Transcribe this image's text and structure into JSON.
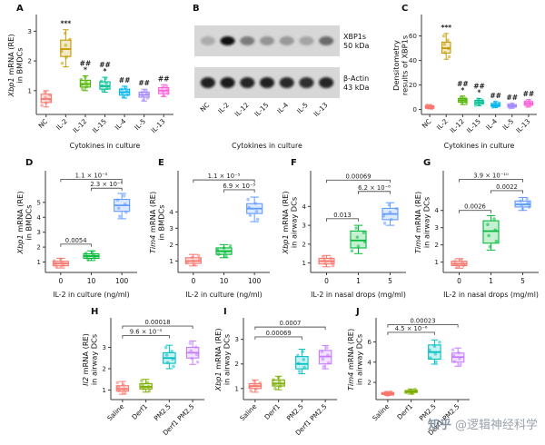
{
  "figure": {
    "background": "#ffffff",
    "watermark": {
      "brand": "知乎",
      "handle": "@逻辑神经科学"
    }
  },
  "chart_data": [
    {
      "id": "A",
      "type": "box",
      "letter": "A",
      "ylabel": {
        "italic": "Xbp1",
        "rest": " mRNA (RE)",
        "line2": "in BMDCs"
      },
      "xlabel": "Cytokines in culture",
      "categories": [
        "NC",
        "IL-2",
        "IL-12",
        "IL-15",
        "IL-4",
        "IL-5",
        "IL-13"
      ],
      "colors": [
        "#F8766D",
        "#C49A00",
        "#53B400",
        "#00C094",
        "#00B6EB",
        "#A58AFF",
        "#FB61D7"
      ],
      "ylim": [
        0.2,
        3.5
      ],
      "yticks": [
        1,
        2,
        3
      ],
      "boxes": [
        {
          "lo": 0.45,
          "q1": 0.6,
          "med": 0.72,
          "q3": 0.88,
          "hi": 1.0
        },
        {
          "lo": 1.8,
          "q1": 2.15,
          "med": 2.4,
          "q3": 2.7,
          "hi": 3.05
        },
        {
          "lo": 1.0,
          "q1": 1.12,
          "med": 1.22,
          "q3": 1.35,
          "hi": 1.5
        },
        {
          "lo": 0.95,
          "q1": 1.05,
          "med": 1.15,
          "q3": 1.3,
          "hi": 1.45
        },
        {
          "lo": 0.75,
          "q1": 0.85,
          "med": 0.95,
          "q3": 1.05,
          "hi": 1.15
        },
        {
          "lo": 0.65,
          "q1": 0.78,
          "med": 0.86,
          "q3": 0.95,
          "hi": 1.05
        },
        {
          "lo": 0.8,
          "q1": 0.9,
          "med": 1.0,
          "q3": 1.1,
          "hi": 1.2
        }
      ],
      "sig": [
        [],
        [
          "***"
        ],
        [
          "##",
          "*"
        ],
        [
          "##",
          "*"
        ],
        [
          "##"
        ],
        [
          "##"
        ],
        [
          "##"
        ]
      ],
      "brackets": []
    },
    {
      "id": "B",
      "type": "blot",
      "letter": "B",
      "lanes": [
        "NC",
        "IL-2",
        "IL-12",
        "IL-15",
        "IL-4",
        "IL-5",
        "IL-13"
      ],
      "xlabel": "Cytokines in culture",
      "rows": [
        {
          "label": "XBP1s",
          "size": "50 kDa",
          "intensities": [
            0.18,
            1.0,
            0.42,
            0.3,
            0.28,
            0.22,
            0.5
          ]
        },
        {
          "label": "β-Actin",
          "size": "43 kDa",
          "intensities": [
            0.92,
            0.95,
            0.9,
            0.92,
            0.88,
            0.85,
            0.9
          ]
        }
      ]
    },
    {
      "id": "C",
      "type": "box",
      "letter": "C",
      "ylabel": {
        "italic": "",
        "rest": "Densitometry",
        "line2": "results of XBP1s"
      },
      "xlabel": "Cytokines in culture",
      "categories": [
        "NC",
        "IL-2",
        "IL-12",
        "IL-15",
        "IL-4",
        "IL-5",
        "IL-13"
      ],
      "colors": [
        "#F8766D",
        "#C49A00",
        "#53B400",
        "#00C094",
        "#00B6EB",
        "#A58AFF",
        "#FB61D7"
      ],
      "ylim": [
        -4,
        76
      ],
      "yticks": [
        0,
        20,
        40,
        60
      ],
      "boxes": [
        {
          "lo": 0.5,
          "q1": 1,
          "med": 2,
          "q3": 3,
          "hi": 4
        },
        {
          "lo": 41,
          "q1": 46,
          "med": 50,
          "q3": 55,
          "hi": 62
        },
        {
          "lo": 4,
          "q1": 6,
          "med": 7.5,
          "q3": 9,
          "hi": 11
        },
        {
          "lo": 3,
          "q1": 4.5,
          "med": 6,
          "q3": 7.5,
          "hi": 9
        },
        {
          "lo": 1.5,
          "q1": 2.5,
          "med": 3.5,
          "q3": 5,
          "hi": 6.5
        },
        {
          "lo": 1,
          "q1": 2,
          "med": 3,
          "q3": 4,
          "hi": 5
        },
        {
          "lo": 2,
          "q1": 3.5,
          "med": 5,
          "q3": 6.5,
          "hi": 8
        }
      ],
      "sig": [
        [],
        [
          "***"
        ],
        [
          "##",
          "*"
        ],
        [
          "##",
          "*"
        ],
        [
          "##"
        ],
        [
          "##"
        ],
        [
          "##"
        ]
      ],
      "brackets": []
    },
    {
      "id": "D",
      "type": "box",
      "letter": "D",
      "ylabel": {
        "italic": "Xbp1",
        "rest": " mRNA (RE)",
        "line2": "in BMDCs"
      },
      "xlabel": "IL-2 in culture (ng/ml)",
      "categories": [
        "0",
        "10",
        "100"
      ],
      "colors": [
        "#F8766D",
        "#00BA38",
        "#619CFF"
      ],
      "ylim": [
        0.3,
        7.0
      ],
      "yticks": [
        1,
        2,
        3,
        4,
        5
      ],
      "boxes": [
        {
          "lo": 0.6,
          "q1": 0.75,
          "med": 0.9,
          "q3": 1.05,
          "hi": 1.25
        },
        {
          "lo": 1.1,
          "q1": 1.25,
          "med": 1.4,
          "q3": 1.55,
          "hi": 1.75
        },
        {
          "lo": 3.9,
          "q1": 4.4,
          "med": 4.8,
          "q3": 5.2,
          "hi": 5.6
        }
      ],
      "sig": [
        [],
        [],
        []
      ],
      "brackets": [
        {
          "from": 0,
          "to": 2,
          "y": 6.55,
          "label": "1.1 × 10⁻⁵"
        },
        {
          "from": 1,
          "to": 2,
          "y": 5.95,
          "label": "2.3 × 10⁻⁶"
        },
        {
          "from": 0,
          "to": 1,
          "y": 2.2,
          "label": "0.0054"
        }
      ]
    },
    {
      "id": "E",
      "type": "box",
      "letter": "E",
      "ylabel": {
        "italic": "Tim4",
        "rest": " mRNA (RE)",
        "line2": "in BMDCs"
      },
      "xlabel": "IL-2 in culture (ng/ml)",
      "categories": [
        "0",
        "10",
        "100"
      ],
      "colors": [
        "#F8766D",
        "#00BA38",
        "#619CFF"
      ],
      "ylim": [
        0.3,
        6.4
      ],
      "yticks": [
        1,
        2,
        3,
        4
      ],
      "boxes": [
        {
          "lo": 0.7,
          "q1": 0.85,
          "med": 1.0,
          "q3": 1.2,
          "hi": 1.4
        },
        {
          "lo": 1.2,
          "q1": 1.4,
          "med": 1.6,
          "q3": 1.8,
          "hi": 2.0
        },
        {
          "lo": 3.4,
          "q1": 3.9,
          "med": 4.2,
          "q3": 4.5,
          "hi": 4.9
        }
      ],
      "sig": [
        [],
        [],
        []
      ],
      "brackets": [
        {
          "from": 0,
          "to": 2,
          "y": 5.95,
          "label": "1.1 × 10⁻⁵"
        },
        {
          "from": 1,
          "to": 2,
          "y": 5.35,
          "label": "6.9 × 10⁻⁵"
        }
      ]
    },
    {
      "id": "F",
      "type": "box",
      "letter": "F",
      "ylabel": {
        "italic": "Xbp1",
        "rest": " mRNA (RE)",
        "line2": "in airway DCs"
      },
      "xlabel": "IL-2 in nasal drops (mg/ml)",
      "categories": [
        "0",
        "1",
        "5"
      ],
      "colors": [
        "#F8766D",
        "#00BA38",
        "#619CFF"
      ],
      "ylim": [
        0.5,
        5.8
      ],
      "yticks": [
        1,
        2,
        3,
        4
      ],
      "boxes": [
        {
          "lo": 0.8,
          "q1": 0.95,
          "med": 1.1,
          "q3": 1.25,
          "hi": 1.4
        },
        {
          "lo": 1.5,
          "q1": 1.8,
          "med": 2.2,
          "q3": 2.7,
          "hi": 3.0
        },
        {
          "lo": 3.0,
          "q1": 3.3,
          "med": 3.6,
          "q3": 3.9,
          "hi": 4.2
        }
      ],
      "sig": [
        [],
        [],
        []
      ],
      "brackets": [
        {
          "from": 0,
          "to": 2,
          "y": 5.4,
          "label": "0.00069"
        },
        {
          "from": 1,
          "to": 2,
          "y": 4.8,
          "label": "6.2 × 10⁻⁶"
        },
        {
          "from": 0,
          "to": 1,
          "y": 3.35,
          "label": "0.013"
        }
      ]
    },
    {
      "id": "G",
      "type": "box",
      "letter": "G",
      "ylabel": {
        "italic": "Tim4",
        "rest": " mRNA (RE)",
        "line2": "in airway DCs"
      },
      "xlabel": "IL-2 in nasal drops (mg/ml)",
      "categories": [
        "0",
        "1",
        "5"
      ],
      "colors": [
        "#F8766D",
        "#00BA38",
        "#619CFF"
      ],
      "ylim": [
        0.4,
        6.2
      ],
      "yticks": [
        1,
        2,
        3,
        4
      ],
      "boxes": [
        {
          "lo": 0.65,
          "q1": 0.8,
          "med": 0.9,
          "q3": 1.05,
          "hi": 1.2
        },
        {
          "lo": 1.7,
          "q1": 2.1,
          "med": 2.8,
          "q3": 3.4,
          "hi": 3.7
        },
        {
          "lo": 4.0,
          "q1": 4.2,
          "med": 4.35,
          "q3": 4.55,
          "hi": 4.75
        }
      ],
      "sig": [
        [],
        [],
        []
      ],
      "brackets": [
        {
          "from": 0,
          "to": 2,
          "y": 5.8,
          "label": "3.9 × 10⁻¹⁰"
        },
        {
          "from": 1,
          "to": 2,
          "y": 5.15,
          "label": "0.0022"
        },
        {
          "from": 0,
          "to": 1,
          "y": 4.0,
          "label": "0.0026"
        }
      ]
    },
    {
      "id": "H",
      "type": "box",
      "letter": "H",
      "ylabel": {
        "italic": "Il2",
        "rest": " mRNA (RE)",
        "line2": "in airway DCs"
      },
      "xlabel": "",
      "categories": [
        "Saline",
        "Derf1",
        "PM2.5",
        "Derf1 PM2.5"
      ],
      "colors": [
        "#F8766D",
        "#7CAE00",
        "#00BFC4",
        "#C77CFF"
      ],
      "ylim": [
        0.55,
        4.3
      ],
      "yticks": [
        1,
        2,
        3
      ],
      "boxes": [
        {
          "lo": 0.8,
          "q1": 0.95,
          "med": 1.05,
          "q3": 1.2,
          "hi": 1.4
        },
        {
          "lo": 0.9,
          "q1": 1.05,
          "med": 1.15,
          "q3": 1.3,
          "hi": 1.5
        },
        {
          "lo": 2.0,
          "q1": 2.25,
          "med": 2.5,
          "q3": 2.75,
          "hi": 3.1
        },
        {
          "lo": 2.2,
          "q1": 2.5,
          "med": 2.75,
          "q3": 3.0,
          "hi": 3.3
        }
      ],
      "sig": [
        [],
        [],
        [],
        []
      ],
      "brackets": [
        {
          "from": 0,
          "to": 3,
          "y": 4.0,
          "label": "0.00018"
        },
        {
          "from": 0,
          "to": 2,
          "y": 3.55,
          "label": "9.6 × 10⁻⁵"
        }
      ]
    },
    {
      "id": "I",
      "type": "box",
      "letter": "I",
      "ylabel": {
        "italic": "Xbp1",
        "rest": " mRNA (RE)",
        "line2": "in airway DCs"
      },
      "xlabel": "",
      "categories": [
        "Saline",
        "Derf1",
        "PM2.5",
        "Derf1 PM2.5"
      ],
      "colors": [
        "#F8766D",
        "#7CAE00",
        "#00BFC4",
        "#C77CFF"
      ],
      "ylim": [
        0.55,
        3.8
      ],
      "yticks": [
        1,
        2,
        3
      ],
      "boxes": [
        {
          "lo": 0.85,
          "q1": 1.0,
          "med": 1.1,
          "q3": 1.2,
          "hi": 1.35
        },
        {
          "lo": 0.95,
          "q1": 1.1,
          "med": 1.2,
          "q3": 1.35,
          "hi": 1.5
        },
        {
          "lo": 1.6,
          "q1": 1.8,
          "med": 2.0,
          "q3": 2.3,
          "hi": 2.6
        },
        {
          "lo": 1.8,
          "q1": 2.0,
          "med": 2.3,
          "q3": 2.55,
          "hi": 2.75
        }
      ],
      "sig": [
        [],
        [],
        [],
        []
      ],
      "brackets": [
        {
          "from": 0,
          "to": 3,
          "y": 3.5,
          "label": "0.0007"
        },
        {
          "from": 0,
          "to": 2,
          "y": 3.1,
          "label": "0.00069"
        }
      ]
    },
    {
      "id": "J",
      "type": "box",
      "letter": "J",
      "ylabel": {
        "italic": "Tim4",
        "rest": " mRNA (RE)",
        "line2": "in airway DCs"
      },
      "xlabel": "",
      "categories": [
        "Saline",
        "Derf1",
        "PM2.5",
        "Derf1 PM2.5"
      ],
      "colors": [
        "#F8766D",
        "#7CAE00",
        "#00BFC4",
        "#C77CFF"
      ],
      "ylim": [
        0.3,
        8.2
      ],
      "yticks": [
        2,
        4,
        6
      ],
      "boxes": [
        {
          "lo": 0.7,
          "q1": 0.8,
          "med": 0.9,
          "q3": 1.0,
          "hi": 1.1
        },
        {
          "lo": 0.85,
          "q1": 1.0,
          "med": 1.1,
          "q3": 1.2,
          "hi": 1.35
        },
        {
          "lo": 3.8,
          "q1": 4.3,
          "med": 5.0,
          "q3": 5.7,
          "hi": 6.2
        },
        {
          "lo": 3.6,
          "q1": 4.0,
          "med": 4.5,
          "q3": 4.9,
          "hi": 5.4
        }
      ],
      "sig": [
        [],
        [],
        [],
        []
      ],
      "brackets": [
        {
          "from": 0,
          "to": 3,
          "y": 7.7,
          "label": "0.00023"
        },
        {
          "from": 0,
          "to": 2,
          "y": 6.95,
          "label": "4.5 × 10⁻⁶"
        }
      ]
    }
  ]
}
